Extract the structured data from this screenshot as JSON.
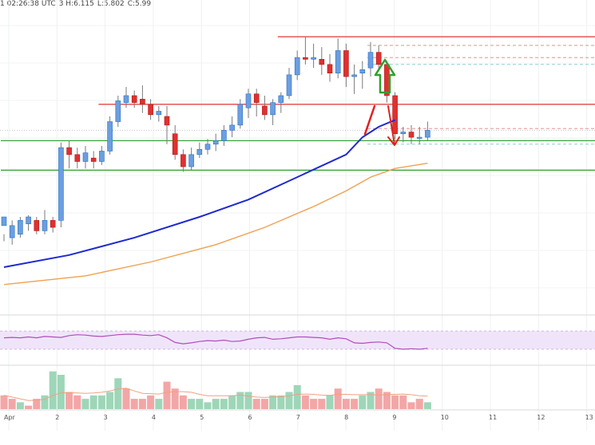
{
  "header": {
    "time": "1 02:26:38 UTC",
    "h": "3 H:6.115",
    "l": "L:5.802",
    "c": "C:5.99"
  },
  "chart_data": {
    "type": "candlestick",
    "x_ticks": [
      "Apr",
      "2",
      "3",
      "4",
      "5",
      "6",
      "7",
      "8",
      "9",
      "10",
      "11",
      "12",
      "13"
    ],
    "candles": [
      [
        5.47,
        5.52,
        5.42,
        5.38
      ],
      [
        5.4,
        5.47,
        5.5,
        5.36
      ],
      [
        5.42,
        5.5,
        5.52,
        5.4
      ],
      [
        5.48,
        5.52,
        5.53,
        5.44
      ],
      [
        5.5,
        5.44,
        5.52,
        5.42
      ],
      [
        5.44,
        5.5,
        5.56,
        5.42
      ],
      [
        5.5,
        5.46,
        5.52,
        5.43
      ],
      [
        5.5,
        5.92,
        5.95,
        5.46
      ],
      [
        5.92,
        5.88,
        5.96,
        5.8
      ],
      [
        5.88,
        5.84,
        5.92,
        5.8
      ],
      [
        5.84,
        5.89,
        5.93,
        5.8
      ],
      [
        5.86,
        5.84,
        5.9,
        5.8
      ],
      [
        5.84,
        5.9,
        5.93,
        5.82
      ],
      [
        5.9,
        6.07,
        6.1,
        5.88
      ],
      [
        6.07,
        6.19,
        6.22,
        6.04
      ],
      [
        6.18,
        6.22,
        6.27,
        6.15
      ],
      [
        6.22,
        6.18,
        6.25,
        6.15
      ],
      [
        6.2,
        6.17,
        6.28,
        6.12
      ],
      [
        6.17,
        6.11,
        6.2,
        6.08
      ],
      [
        6.11,
        6.13,
        6.16,
        6.07
      ],
      [
        6.1,
        6.05,
        6.16,
        5.94
      ],
      [
        6.0,
        5.88,
        6.05,
        5.85
      ],
      [
        5.88,
        5.81,
        5.91,
        5.78
      ],
      [
        5.81,
        5.88,
        5.92,
        5.79
      ],
      [
        5.88,
        5.91,
        5.95,
        5.86
      ],
      [
        5.91,
        5.94,
        5.97,
        5.88
      ],
      [
        5.94,
        5.96,
        6.0,
        5.9
      ],
      [
        5.96,
        6.02,
        6.05,
        5.93
      ],
      [
        6.02,
        6.05,
        6.1,
        5.98
      ],
      [
        6.05,
        6.17,
        6.2,
        6.03
      ],
      [
        6.15,
        6.23,
        6.26,
        6.09
      ],
      [
        6.23,
        6.18,
        6.26,
        6.1
      ],
      [
        6.16,
        6.11,
        6.22,
        6.08
      ],
      [
        6.11,
        6.18,
        6.2,
        6.05
      ],
      [
        6.18,
        6.22,
        6.24,
        6.12
      ],
      [
        6.22,
        6.34,
        6.38,
        6.2
      ],
      [
        6.34,
        6.44,
        6.48,
        6.31
      ],
      [
        6.44,
        6.43,
        6.56,
        6.4
      ],
      [
        6.43,
        6.44,
        6.52,
        6.38
      ],
      [
        6.43,
        6.4,
        6.5,
        6.34
      ],
      [
        6.4,
        6.35,
        6.46,
        6.3
      ],
      [
        6.35,
        6.48,
        6.55,
        6.32
      ],
      [
        6.48,
        6.33,
        6.52,
        6.27
      ],
      [
        6.33,
        6.34,
        6.4,
        6.23
      ],
      [
        6.35,
        6.37,
        6.42,
        6.26
      ],
      [
        6.38,
        6.47,
        6.53,
        6.33
      ],
      [
        6.47,
        6.4,
        6.51,
        6.36
      ],
      [
        6.4,
        6.22,
        6.42,
        6.18
      ],
      [
        6.22,
        6.0,
        6.24,
        5.97
      ],
      [
        6.0,
        6.01,
        6.04,
        5.95
      ],
      [
        6.01,
        5.98,
        6.05,
        5.94
      ],
      [
        5.98,
        5.98,
        6.04,
        5.94
      ],
      [
        5.98,
        6.02,
        6.07,
        5.96
      ]
    ],
    "ma_blue": [
      [
        0,
        5.23
      ],
      [
        8,
        5.3
      ],
      [
        16,
        5.4
      ],
      [
        24,
        5.52
      ],
      [
        30,
        5.62
      ],
      [
        36,
        5.75
      ],
      [
        42,
        5.88
      ],
      [
        44,
        5.98
      ],
      [
        46,
        6.04
      ],
      [
        48,
        6.08
      ]
    ],
    "ma_orange": [
      [
        0,
        5.13
      ],
      [
        10,
        5.18
      ],
      [
        18,
        5.26
      ],
      [
        26,
        5.36
      ],
      [
        32,
        5.46
      ],
      [
        38,
        5.58
      ],
      [
        42,
        5.67
      ],
      [
        45,
        5.75
      ],
      [
        48,
        5.8
      ],
      [
        52,
        5.83
      ]
    ],
    "hlines": [
      {
        "y": 6.56,
        "color": "#e01e1e",
        "style": "solid",
        "x0": 34
      },
      {
        "y": 6.51,
        "color": "#e08080",
        "style": "dashed",
        "x0": 45
      },
      {
        "y": 6.44,
        "color": "#e08080",
        "style": "dashed",
        "x0": 45
      },
      {
        "y": 6.4,
        "color": "#80c8c8",
        "style": "dashed",
        "x0": 45
      },
      {
        "y": 6.17,
        "color": "#e01e1e",
        "style": "solid",
        "x0": 12
      },
      {
        "y": 6.03,
        "color": "#e08080",
        "style": "dashed",
        "x0": 45
      },
      {
        "y": 5.96,
        "color": "#2e9e2e",
        "style": "solid",
        "x0": 0
      },
      {
        "y": 5.94,
        "color": "#80c8c8",
        "style": "dashed",
        "x0": 45
      },
      {
        "y": 5.79,
        "color": "#2e9e2e",
        "style": "solid",
        "x0": 0
      }
    ],
    "ylim": [
      5.0,
      6.68
    ],
    "rsi": [
      55,
      56,
      55,
      57,
      55,
      58,
      57,
      56,
      60,
      62,
      61,
      59,
      58,
      60,
      62,
      63,
      63,
      61,
      60,
      62,
      55,
      45,
      42,
      44,
      47,
      49,
      48,
      50,
      47,
      48,
      52,
      55,
      56,
      52,
      53,
      55,
      57,
      57,
      56,
      55,
      52,
      55,
      53,
      44,
      43,
      45,
      46,
      44,
      32,
      30,
      31,
      30,
      32
    ],
    "rsi_band": [
      30,
      70
    ],
    "volume": [
      [
        4,
        "r"
      ],
      [
        3,
        "r"
      ],
      [
        2,
        "g"
      ],
      [
        1,
        "r"
      ],
      [
        3,
        "r"
      ],
      [
        4,
        "g"
      ],
      [
        11,
        "g"
      ],
      [
        10,
        "g"
      ],
      [
        5,
        "r"
      ],
      [
        4,
        "r"
      ],
      [
        3,
        "g"
      ],
      [
        4,
        "g"
      ],
      [
        4,
        "g"
      ],
      [
        5,
        "g"
      ],
      [
        9,
        "g"
      ],
      [
        6,
        "r"
      ],
      [
        3,
        "r"
      ],
      [
        3,
        "r"
      ],
      [
        4,
        "r"
      ],
      [
        3,
        "g"
      ],
      [
        8,
        "r"
      ],
      [
        6,
        "r"
      ],
      [
        4,
        "r"
      ],
      [
        3,
        "g"
      ],
      [
        3,
        "g"
      ],
      [
        2,
        "g"
      ],
      [
        3,
        "g"
      ],
      [
        3,
        "g"
      ],
      [
        4,
        "g"
      ],
      [
        5,
        "g"
      ],
      [
        5,
        "g"
      ],
      [
        3,
        "r"
      ],
      [
        3,
        "r"
      ],
      [
        4,
        "g"
      ],
      [
        4,
        "g"
      ],
      [
        5,
        "g"
      ],
      [
        7,
        "g"
      ],
      [
        4,
        "r"
      ],
      [
        3,
        "r"
      ],
      [
        3,
        "r"
      ],
      [
        4,
        "g"
      ],
      [
        6,
        "r"
      ],
      [
        3,
        "r"
      ],
      [
        3,
        "r"
      ],
      [
        4,
        "g"
      ],
      [
        5,
        "g"
      ],
      [
        6,
        "r"
      ],
      [
        5,
        "r"
      ],
      [
        4,
        "r"
      ],
      [
        4,
        "r"
      ],
      [
        2,
        "r"
      ],
      [
        3,
        "r"
      ],
      [
        2,
        "g"
      ]
    ]
  },
  "colors": {
    "up": "#6a9fe0",
    "down": "#e03030",
    "up_border": "#2e6fc4",
    "ma_blue": "#1e2ad0",
    "ma_orange": "#f0a050",
    "rsi_line": "#b04eb8",
    "rsi_band_fill": "#f0e4fb",
    "vol_up": "#9ed6b8",
    "vol_down": "#f3a6a6",
    "green_arrow": "#2ea02e",
    "red_arrow": "#e02020"
  }
}
